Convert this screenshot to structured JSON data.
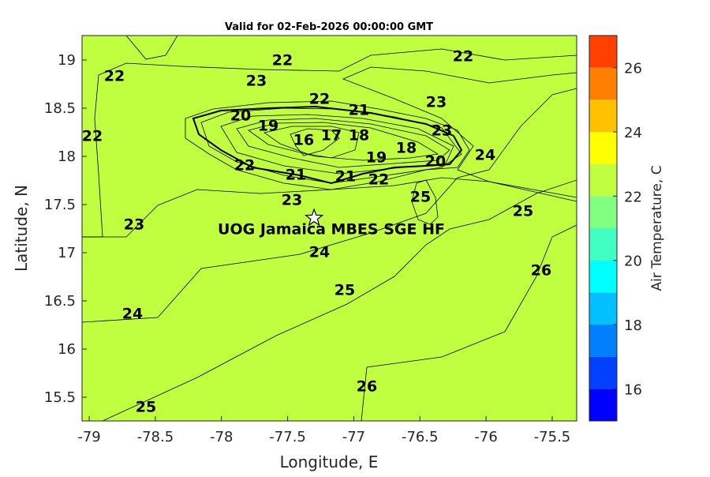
{
  "chart_data": {
    "type": "heatmap",
    "subtype": "filled-contour-map",
    "title": "Valid for 02-Feb-2026 00:00:00 GMT",
    "xlabel": "Longitude, E",
    "ylabel": "Latitude, N",
    "xlim": [
      -79.054,
      -75.315
    ],
    "ylim": [
      15.254,
      19.254
    ],
    "xticks": [
      -79,
      -78.5,
      -78,
      -77.5,
      -77,
      -76.5,
      -76,
      -75.5
    ],
    "yticks": [
      15.5,
      16,
      16.5,
      17,
      17.5,
      18,
      18.5,
      19
    ],
    "colorbar": {
      "label": "Air Temperature, C",
      "range": [
        15,
        27
      ],
      "ticks": [
        16,
        18,
        20,
        22,
        24,
        26
      ],
      "levels": [
        15,
        16,
        17,
        18,
        19,
        20,
        21,
        22,
        23,
        24,
        25,
        26,
        27
      ],
      "colors": [
        "#0000FF",
        "#0040FF",
        "#0080FF",
        "#00C0FF",
        "#00FFFF",
        "#40FFC0",
        "#80FF80",
        "#C0FF40",
        "#FFFF00",
        "#FFC000",
        "#FF8000",
        "#FF4000"
      ]
    },
    "station": {
      "name": "UOG Jamaica MBES SGE HF",
      "lon": -77.3,
      "lat": 17.36,
      "marker": "star"
    },
    "contour_labels": [
      "22",
      "22",
      "22",
      "23",
      "23",
      "22",
      "21",
      "20",
      "19",
      "16",
      "17",
      "18",
      "23",
      "22",
      "24",
      "22",
      "21",
      "19",
      "18",
      "20",
      "21",
      "22",
      "25",
      "23",
      "25",
      "23",
      "24",
      "26",
      "25",
      "24",
      "26",
      "25"
    ],
    "summary": "Coldest (~15-16 C) over central Jamaica interior near -77.4E,18.2N; warming to 26+ C toward the southeast"
  }
}
